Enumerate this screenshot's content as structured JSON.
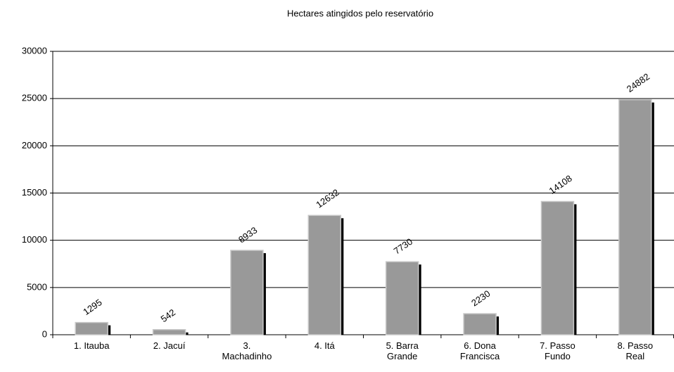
{
  "chart_data": {
    "type": "bar",
    "title": "Hectares atingidos pelo reservatório",
    "categories": [
      "1. Itauba",
      "2. Jacuí",
      "3.\nMachadinho",
      "4. Itá",
      "5. Barra\nGrande",
      "6. Dona\nFrancisca",
      "7. Passo\nFundo",
      "8. Passo\nReal"
    ],
    "values": [
      1295,
      542,
      8933,
      12632,
      7730,
      2230,
      14108,
      24882
    ],
    "color": "#999999",
    "ylim": [
      0,
      30000
    ],
    "yticks": [
      0,
      5000,
      10000,
      15000,
      20000,
      25000,
      30000
    ],
    "grid": true
  }
}
